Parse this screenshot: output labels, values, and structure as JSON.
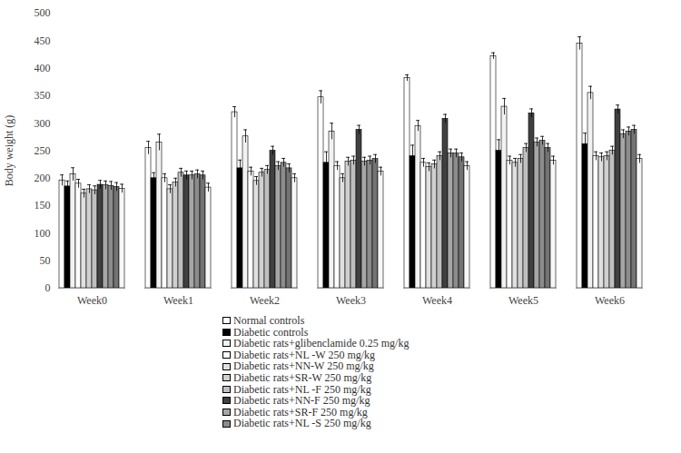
{
  "chart_data": {
    "type": "bar",
    "y_label": "Body weight (g)",
    "categories": [
      "Week0",
      "Week1",
      "Week2",
      "Week3",
      "Week4",
      "Week5",
      "Week6"
    ],
    "ylim": [
      0,
      500
    ],
    "yticks": [
      0,
      50,
      100,
      150,
      200,
      250,
      300,
      350,
      400,
      450,
      500
    ],
    "series": [
      {
        "name": "Normal controls",
        "color": "#ffffff",
        "values": [
          196,
          255,
          320,
          347,
          382,
          422,
          445
        ],
        "errors": [
          10,
          12,
          10,
          12,
          6,
          6,
          12
        ]
      },
      {
        "name": "Diabetic controls",
        "color": "#000000",
        "values": [
          185,
          200,
          218,
          228,
          240,
          250,
          262
        ],
        "errors": [
          10,
          10,
          15,
          20,
          20,
          20,
          20
        ]
      },
      {
        "name": "Diabetic rats+glibenclamide 0.25 mg/kg",
        "color": "#f2f2f2",
        "values": [
          207,
          265,
          276,
          285,
          295,
          330,
          355
        ],
        "errors": [
          12,
          15,
          12,
          15,
          10,
          15,
          12
        ]
      },
      {
        "name": "Diabetic rats+NL -W 250 mg/kg",
        "color": "#ffffff",
        "values": [
          190,
          200,
          212,
          222,
          228,
          232,
          240
        ],
        "errors": [
          8,
          8,
          8,
          8,
          8,
          8,
          8
        ]
      },
      {
        "name": "Diabetic rats+NN-W  250 mg/kg",
        "color": "#e0e0e0",
        "values": [
          172,
          180,
          195,
          200,
          220,
          228,
          238
        ],
        "errors": [
          8,
          8,
          8,
          8,
          8,
          8,
          8
        ]
      },
      {
        "name": "Diabetic rats+SR-W  250 mg/kg",
        "color": "#d0d0d0",
        "values": [
          180,
          192,
          210,
          230,
          225,
          235,
          240
        ],
        "errors": [
          8,
          8,
          8,
          8,
          8,
          8,
          8
        ]
      },
      {
        "name": "Diabetic rats+NL -F  250 mg/kg",
        "color": "#bfbfbf",
        "values": [
          178,
          210,
          215,
          232,
          240,
          255,
          250
        ],
        "errors": [
          8,
          8,
          8,
          8,
          8,
          8,
          8
        ]
      },
      {
        "name": "Diabetic rats+NN-F  250 mg/kg",
        "color": "#404040",
        "values": [
          188,
          205,
          250,
          288,
          308,
          318,
          325
        ],
        "errors": [
          8,
          8,
          8,
          8,
          8,
          8,
          8
        ]
      },
      {
        "name": "Diabetic rats+SR-F  250 mg/kg",
        "color": "#a6a6a6",
        "values": [
          187,
          205,
          222,
          230,
          245,
          265,
          280
        ],
        "errors": [
          8,
          8,
          8,
          8,
          8,
          8,
          8
        ]
      },
      {
        "name": "Diabetic rats+NL -S  250 mg/kg",
        "color": "#8c8c8c",
        "values": [
          186,
          207,
          228,
          232,
          245,
          268,
          285
        ],
        "errors": [
          8,
          8,
          8,
          8,
          8,
          8,
          8
        ]
      },
      {
        "name": null,
        "color": "#737373",
        "values": [
          184,
          205,
          218,
          235,
          238,
          255,
          288
        ],
        "errors": [
          8,
          8,
          8,
          8,
          8,
          8,
          8
        ]
      },
      {
        "name": null,
        "color": "#f7f7f7",
        "values": [
          181,
          183,
          200,
          212,
          222,
          232,
          235
        ],
        "errors": [
          8,
          8,
          8,
          8,
          8,
          8,
          8
        ]
      }
    ]
  }
}
